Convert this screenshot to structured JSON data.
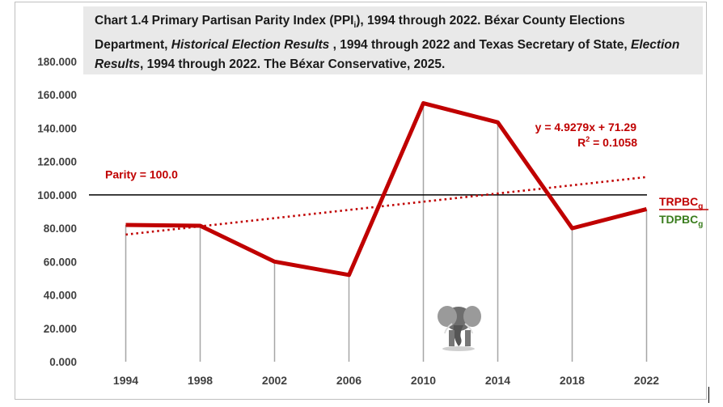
{
  "title": {
    "part1": "Chart 1.4 Primary Partisan Parity Index (PPI",
    "sub": "i",
    "part2": "), 1994 through 2022. Béxar County Elections Department, ",
    "italic1": "Historical Election Results",
    "part3": " , 1994 through 2022 and Texas Secretary of State, ",
    "italic2": "Election Results",
    "part4": ", 1994 through 2022. The Béxar Conservative, 2025."
  },
  "chart_data": {
    "type": "line",
    "categories": [
      "1994",
      "1998",
      "2002",
      "2006",
      "2010",
      "2014",
      "2018",
      "2022"
    ],
    "series": [
      {
        "values": [
          82,
          81.5,
          60,
          52,
          155,
          143.5,
          80,
          91.5
        ],
        "color": "#c00000"
      }
    ],
    "ylim": [
      0,
      180
    ],
    "yticks": [
      "0.000",
      "20.000",
      "40.000",
      "60.000",
      "80.000",
      "100.000",
      "120.000",
      "140.000",
      "160.000",
      "180.000"
    ],
    "reference_line": {
      "value": 100,
      "label": "Parity = 100.0",
      "color": "#000000"
    },
    "trendline": {
      "slope": 4.9279,
      "intercept": 71.29,
      "equation_prefix": "y = 4.9279x + 71.29",
      "r2_prefix": "R",
      "r2_sup": "2",
      "r2_value": " = 0.1058",
      "color": "#c00000"
    },
    "legend": [
      {
        "label": "TRPBC",
        "sub": "g",
        "color": "#c00000"
      },
      {
        "label": "TDPBC",
        "sub": "g",
        "color": "#3a7d1e"
      }
    ],
    "drop_lines": true
  },
  "decorations": {
    "mascot": "elephant-icon"
  }
}
